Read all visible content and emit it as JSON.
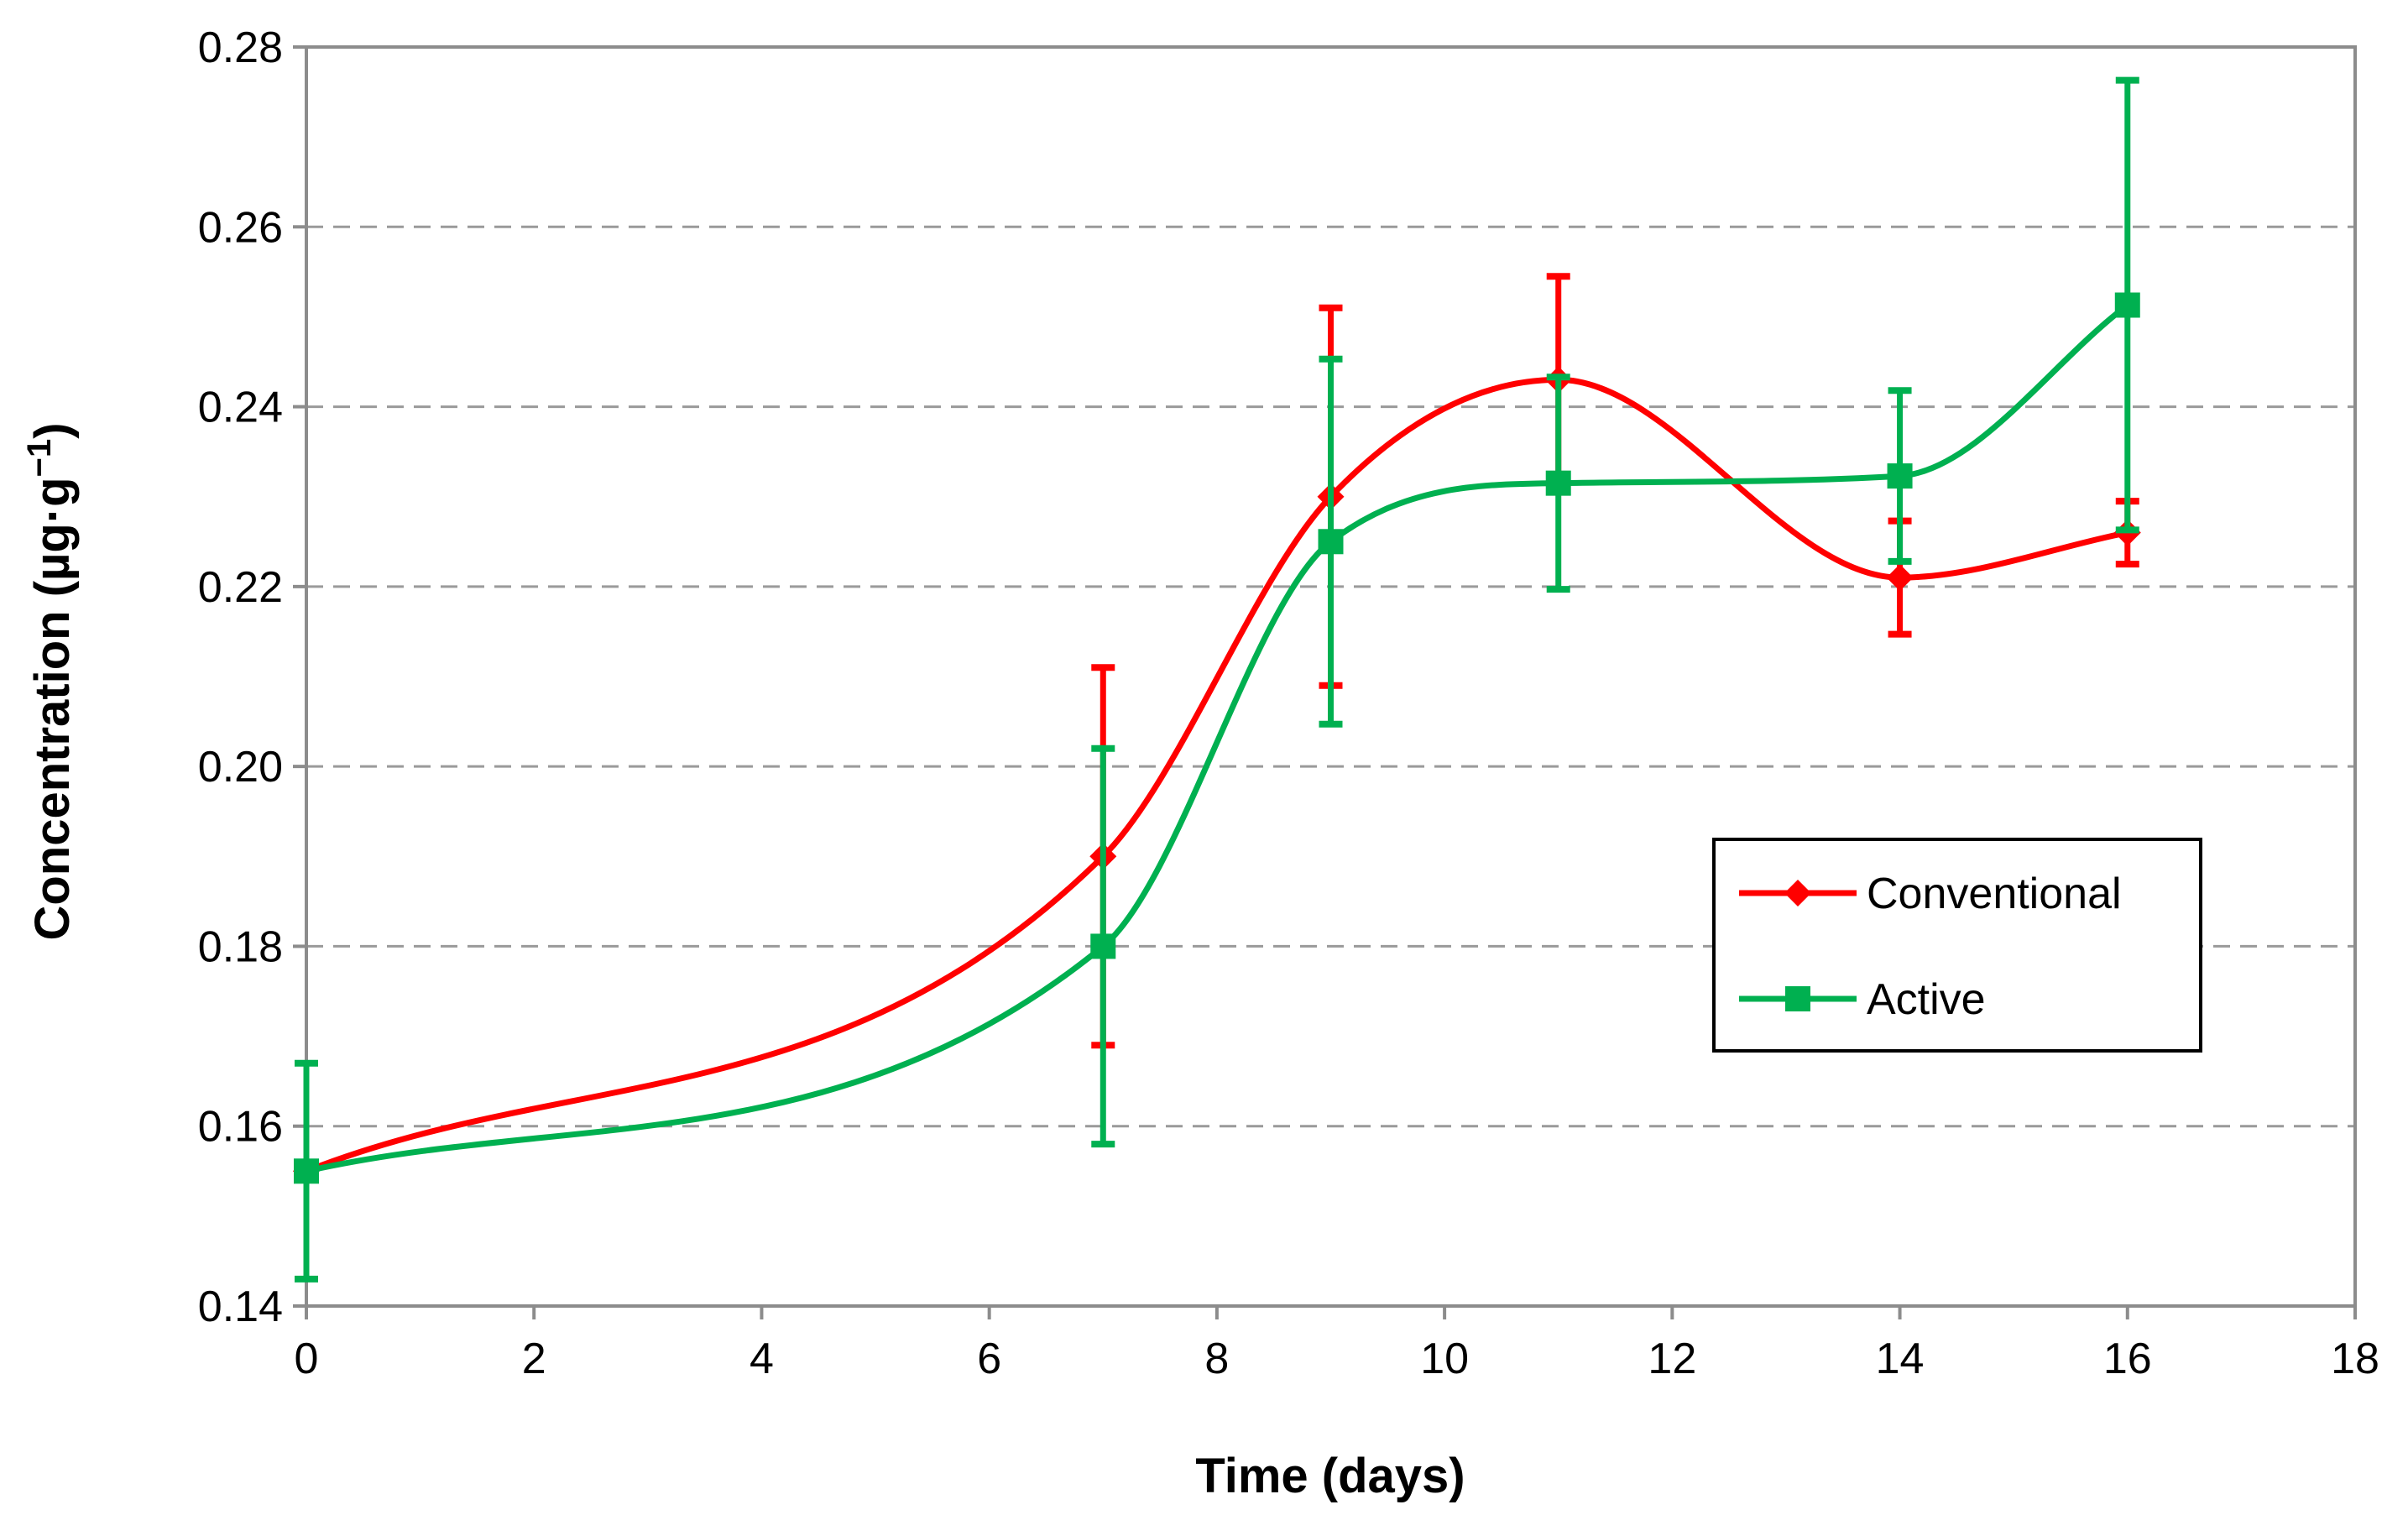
{
  "chart_data": {
    "type": "line",
    "title": "",
    "xlabel": "Time (days)",
    "ylabel_main": "Concentration (µg·g",
    "ylabel_sup": "−1",
    "ylabel_close": ")",
    "xlim": [
      0,
      18
    ],
    "ylim": [
      0.14,
      0.28
    ],
    "xticks": [
      0,
      2,
      4,
      6,
      8,
      10,
      12,
      14,
      16,
      18
    ],
    "yticks": [
      0.14,
      0.16,
      0.18,
      0.2,
      0.22,
      0.24,
      0.26,
      0.28
    ],
    "ytick_labels": [
      "0.14",
      "0.16",
      "0.18",
      "0.20",
      "0.22",
      "0.24",
      "0.26",
      "0.28"
    ],
    "grid": "horizontal-dashed",
    "legend_position": "center-right",
    "series": [
      {
        "name": "Conventional",
        "color": "#ff0000",
        "marker": "diamond",
        "x": [
          0,
          7,
          9,
          11,
          14,
          16
        ],
        "y": [
          0.155,
          0.19,
          0.23,
          0.243,
          0.221,
          0.226
        ],
        "err": [
          0.0,
          0.021,
          0.021,
          0.0115,
          0.0063,
          0.0035
        ]
      },
      {
        "name": "Active",
        "color": "#00b050",
        "marker": "square",
        "x": [
          0,
          7,
          9,
          11,
          14,
          16
        ],
        "y": [
          0.155,
          0.18,
          0.225,
          0.2315,
          0.2323,
          0.2513
        ],
        "err": [
          0.012,
          0.022,
          0.0203,
          0.0118,
          0.0095,
          0.025
        ]
      }
    ]
  }
}
